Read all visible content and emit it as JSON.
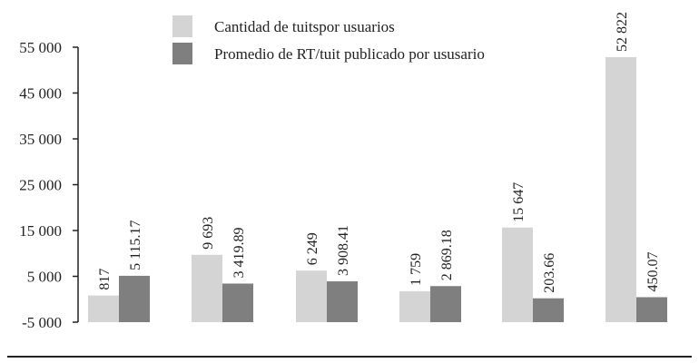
{
  "chart_data": {
    "type": "bar",
    "title": "",
    "xlabel": "",
    "ylabel": "",
    "categories": [
      "",
      "",
      "",
      "",
      "",
      ""
    ],
    "series": [
      {
        "name": "Cantidad de tuitspor usuarios",
        "color": "#d4d4d4",
        "values": [
          817,
          9693,
          6249,
          1759,
          15647,
          52822
        ],
        "labels": [
          "817",
          "9 693",
          "6 249",
          "1 759",
          "15 647",
          "52 822"
        ]
      },
      {
        "name": "Promedio de RT/tuit publicado por ususario",
        "color": "#7f7f7f",
        "values": [
          5115.17,
          3419.89,
          3908.41,
          2869.18,
          203.66,
          450.07
        ],
        "labels": [
          "5 115.17",
          "3 419.89",
          "3 908.41",
          "2 869.18",
          "203.66",
          "450.07"
        ]
      }
    ],
    "ylim": [
      -5000,
      55000
    ],
    "yticks": [
      -5000,
      5000,
      15000,
      25000,
      35000,
      45000,
      55000
    ],
    "ytick_labels": [
      "-5 000",
      "5 000",
      "15 000",
      "25 000",
      "35 000",
      "45 000",
      "55 000"
    ],
    "grid": false,
    "legend_position": "top-center"
  }
}
